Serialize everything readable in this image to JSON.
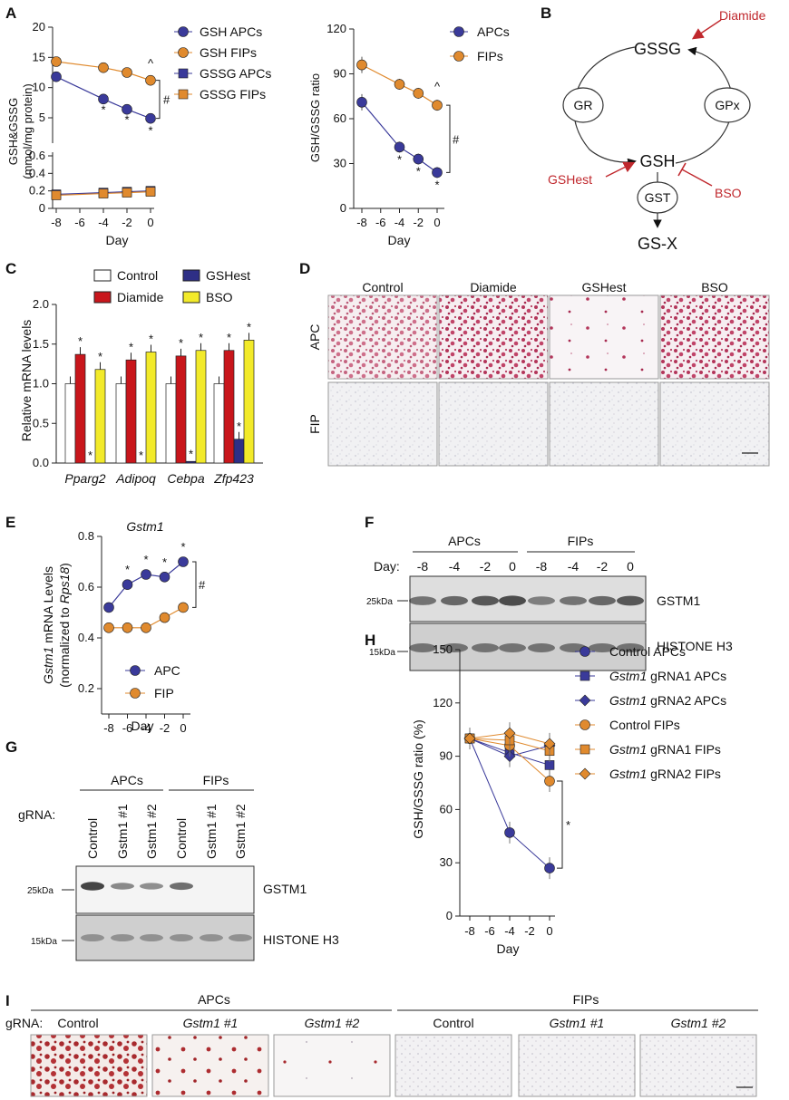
{
  "panels": {
    "A": "A",
    "B": "B",
    "C": "C",
    "D": "D",
    "E": "E",
    "F": "F",
    "G": "G",
    "H": "H",
    "I": "I"
  },
  "colors": {
    "apc": "#3a3a9a",
    "fip": "#e08a2e",
    "diamide": "#c8161c",
    "gshest": "#2e2f86",
    "bso": "#f2ea2a",
    "red": "#c0282d"
  },
  "chart_data": [
    {
      "id": "A_left",
      "type": "line",
      "ylabel": "GSH&GSSG (mmol/mg protein)",
      "xlabel": "Day",
      "x": [
        -8,
        -6,
        -4,
        -2,
        0
      ],
      "xticks": [
        "-8",
        "-6",
        "-4",
        "-2",
        "0"
      ],
      "yticks_top": [
        "5",
        "10",
        "15",
        "20"
      ],
      "yticks_bottom": [
        "0",
        "0.2",
        "0.4",
        "0.6"
      ],
      "series": [
        {
          "name": "GSH APCs",
          "x": [
            -8,
            -4,
            -2,
            0
          ],
          "values": [
            11.8,
            8.1,
            6.4,
            4.9
          ]
        },
        {
          "name": "GSH FIPs",
          "x": [
            -8,
            -4,
            -2,
            0
          ],
          "values": [
            14.3,
            13.3,
            12.5,
            11.2
          ]
        },
        {
          "name": "GSSG APCs",
          "x": [
            -8,
            -4,
            -2,
            0
          ],
          "values": [
            0.16,
            0.18,
            0.19,
            0.2
          ]
        },
        {
          "name": "GSSG FIPs",
          "x": [
            -8,
            -4,
            -2,
            0
          ],
          "values": [
            0.15,
            0.17,
            0.18,
            0.19
          ]
        }
      ],
      "annotations": {
        "star": "*",
        "caret": "^",
        "hash": "#"
      }
    },
    {
      "id": "A_right",
      "type": "line",
      "ylabel": "GSH/GSSG ratio",
      "xlabel": "Day",
      "xticks": [
        "-8",
        "-6",
        "-4",
        "-2",
        "0"
      ],
      "yticks": [
        "0",
        "30",
        "60",
        "90",
        "120"
      ],
      "ylim": [
        0,
        120
      ],
      "series": [
        {
          "name": "APCs",
          "x": [
            -8,
            -4,
            -2,
            0
          ],
          "values": [
            71,
            41,
            33,
            24
          ]
        },
        {
          "name": "FIPs",
          "x": [
            -8,
            -4,
            -2,
            0
          ],
          "values": [
            96,
            83,
            77,
            69
          ]
        }
      ]
    },
    {
      "id": "C",
      "type": "bar",
      "ylabel": "Relative mRNA levels",
      "categories": [
        "Pparg2",
        "Adipoq",
        "Cebpa",
        "Zfp423"
      ],
      "yticks": [
        "0.0",
        "0.5",
        "1.0",
        "1.5",
        "2.0"
      ],
      "ylim": [
        0,
        2
      ],
      "series": [
        {
          "name": "Control",
          "values": [
            1.0,
            1.0,
            1.0,
            1.0
          ]
        },
        {
          "name": "Diamide",
          "values": [
            1.37,
            1.3,
            1.35,
            1.42
          ]
        },
        {
          "name": "GSHest",
          "values": [
            0.0,
            0.0,
            0.02,
            0.3
          ]
        },
        {
          "name": "BSO",
          "values": [
            1.18,
            1.4,
            1.42,
            1.55
          ]
        }
      ]
    },
    {
      "id": "E",
      "type": "line",
      "title": "Gstm1",
      "ylabel_prefix": "Gstm1",
      "ylabel_rest": " mRNA Levels",
      "ylabel2_prefix": "(normalized to ",
      "ylabel2_gene": "Rps18",
      "ylabel2_suffix": ")",
      "xlabel": "Day",
      "xticks": [
        "-8",
        "-6",
        "-4",
        "-2",
        "0"
      ],
      "yticks": [
        "0.2",
        "0.4",
        "0.6",
        "0.8"
      ],
      "ylim": [
        0.1,
        0.8
      ],
      "series": [
        {
          "name": "APC",
          "x": [
            -8,
            -6,
            -4,
            -2,
            0
          ],
          "values": [
            0.52,
            0.61,
            0.65,
            0.64,
            0.7
          ]
        },
        {
          "name": "FIP",
          "x": [
            -8,
            -6,
            -4,
            -2,
            0
          ],
          "values": [
            0.44,
            0.44,
            0.44,
            0.48,
            0.52
          ]
        }
      ]
    },
    {
      "id": "H",
      "type": "line",
      "ylabel": "GSH/GSSG ratio (%)",
      "xlabel": "Day",
      "xticks": [
        "-8",
        "-6",
        "-4",
        "-2",
        "0"
      ],
      "yticks": [
        "0",
        "30",
        "60",
        "90",
        "120",
        "150"
      ],
      "ylim": [
        0,
        150
      ],
      "series": [
        {
          "name": "Control APCs",
          "values": [
            100,
            47,
            27
          ]
        },
        {
          "name": "gRNA1 APCs",
          "values": [
            100,
            92,
            85
          ]
        },
        {
          "name": "gRNA2 APCs",
          "values": [
            100,
            90,
            96
          ]
        },
        {
          "name": "Control FIPs",
          "values": [
            100,
            96,
            76
          ]
        },
        {
          "name": "gRNA1 FIPs",
          "values": [
            100,
            99,
            93
          ]
        },
        {
          "name": "gRNA2 FIPs",
          "values": [
            100,
            103,
            97
          ]
        }
      ],
      "x": [
        -8,
        -4,
        0
      ]
    }
  ],
  "legendA_left": [
    "GSH APCs",
    "GSH FIPs",
    "GSSG APCs",
    "GSSG FIPs"
  ],
  "legendA_right": [
    "APCs",
    "FIPs"
  ],
  "legendC": [
    "Control",
    "GSHest",
    "Diamide",
    "BSO"
  ],
  "legendE": [
    "APC",
    "FIP"
  ],
  "legendH": [
    {
      "it": "",
      "text": "Control APCs"
    },
    {
      "it": "Gstm1",
      "text": " gRNA1 APCs"
    },
    {
      "it": "Gstm1",
      "text": " gRNA2 APCs"
    },
    {
      "it": "",
      "text": "Control FIPs"
    },
    {
      "it": "Gstm1",
      "text": " gRNA1 FIPs"
    },
    {
      "it": "Gstm1",
      "text": " gRNA2 FIPs"
    }
  ],
  "diagramB": {
    "gssg": "GSSG",
    "gsh": "GSH",
    "gr": "GR",
    "gpx": "GPx",
    "gst": "GST",
    "gsx": "GS-X",
    "diamide": "Diamide",
    "gshest": "GSHest",
    "bso": "BSO"
  },
  "panelD": {
    "cols": [
      "Control",
      "Diamide",
      "GSHest",
      "BSO"
    ],
    "rows": [
      "APC",
      "FIP"
    ]
  },
  "panelF": {
    "groups": [
      "APCs",
      "FIPs"
    ],
    "daylabel": "Day:",
    "days": [
      "-8",
      "-4",
      "-2",
      "0",
      "-8",
      "-4",
      "-2",
      "0"
    ],
    "bands": [
      "GSTM1",
      "HISTONE H3"
    ],
    "mw": [
      "25kDa",
      "15kDa"
    ]
  },
  "panelG": {
    "groups": [
      "APCs",
      "FIPs"
    ],
    "grna": "gRNA:",
    "lanes": [
      "Control",
      "Gstm1 #1",
      "Gstm1 #2",
      "Control",
      "Gstm1 #1",
      "Gstm1 #2"
    ],
    "bands": [
      "GSTM1",
      "HISTONE H3"
    ],
    "mw": [
      "25kDa",
      "15kDa"
    ]
  },
  "panelI": {
    "groups": [
      "APCs",
      "FIPs"
    ],
    "grna": "gRNA:",
    "labels": [
      "Control",
      "Gstm1 #1",
      "Gstm1 #2",
      "Control",
      "Gstm1 #1",
      "Gstm1 #2"
    ]
  }
}
